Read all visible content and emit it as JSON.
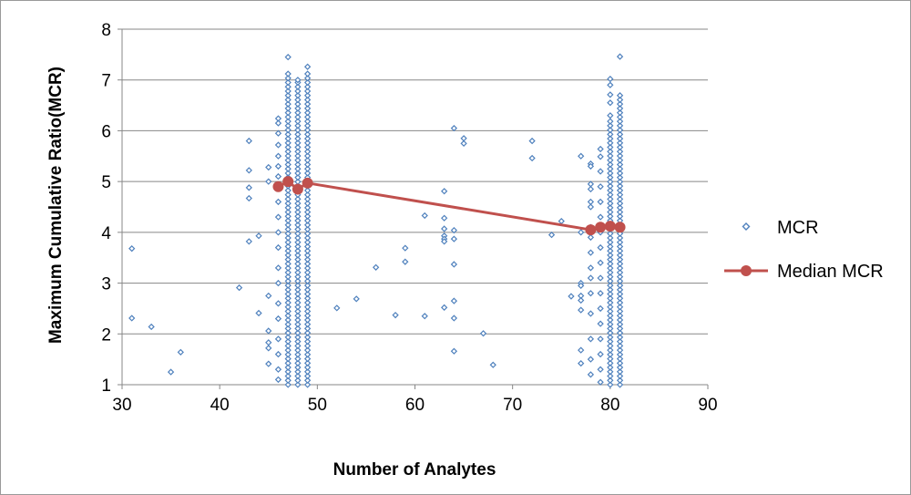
{
  "chart_data": {
    "type": "scatter",
    "xlabel": "Number of Analytes",
    "ylabel": "Maximum Cumulative Ratio(MCR)",
    "xlim": [
      30,
      90
    ],
    "ylim": [
      1,
      8
    ],
    "x_ticks": [
      30,
      40,
      50,
      60,
      70,
      80,
      90
    ],
    "y_ticks": [
      1,
      2,
      3,
      4,
      5,
      6,
      7,
      8
    ],
    "grid": "horizontal major gridlines",
    "legend_position": "right",
    "series": [
      {
        "name": "MCR",
        "type": "scatter",
        "marker": "diamond-open",
        "color": "#4f81bd",
        "points": [
          [
            31,
            3.68
          ],
          [
            31,
            2.31
          ],
          [
            33,
            2.14
          ],
          [
            35,
            1.25
          ],
          [
            36,
            1.64
          ],
          [
            42,
            2.91
          ],
          [
            43,
            5.8
          ],
          [
            43,
            5.22
          ],
          [
            43,
            4.88
          ],
          [
            43,
            4.67
          ],
          [
            43,
            3.82
          ],
          [
            44,
            3.93
          ],
          [
            44,
            2.41
          ],
          [
            45,
            5.28
          ],
          [
            45,
            5.0
          ],
          [
            45,
            2.75
          ],
          [
            45,
            2.06
          ],
          [
            45,
            1.83
          ],
          [
            45,
            1.72
          ],
          [
            45,
            1.41
          ],
          [
            46,
            6.24
          ],
          [
            46,
            6.15
          ],
          [
            46,
            5.95
          ],
          [
            46,
            5.72
          ],
          [
            46,
            5.5
          ],
          [
            46,
            5.3
          ],
          [
            46,
            5.1
          ],
          [
            46,
            4.9
          ],
          [
            46,
            4.6
          ],
          [
            46,
            4.3
          ],
          [
            46,
            4.0
          ],
          [
            46,
            3.7
          ],
          [
            46,
            3.3
          ],
          [
            46,
            3.0
          ],
          [
            46,
            2.6
          ],
          [
            46,
            2.3
          ],
          [
            46,
            1.9
          ],
          [
            46,
            1.6
          ],
          [
            46,
            1.3
          ],
          [
            46,
            1.1
          ],
          [
            52,
            2.51
          ],
          [
            54,
            2.69
          ],
          [
            56,
            3.31
          ],
          [
            58,
            2.37
          ],
          [
            59,
            3.69
          ],
          [
            59,
            3.42
          ],
          [
            61,
            4.33
          ],
          [
            61,
            2.35
          ],
          [
            63,
            4.81
          ],
          [
            63,
            4.28
          ],
          [
            63,
            4.07
          ],
          [
            63,
            3.93
          ],
          [
            63,
            3.87
          ],
          [
            63,
            3.82
          ],
          [
            63,
            2.52
          ],
          [
            64,
            6.05
          ],
          [
            64,
            4.04
          ],
          [
            64,
            3.87
          ],
          [
            64,
            3.37
          ],
          [
            64,
            2.65
          ],
          [
            64,
            2.31
          ],
          [
            64,
            1.66
          ],
          [
            65,
            5.85
          ],
          [
            65,
            5.75
          ],
          [
            67,
            2.01
          ],
          [
            68,
            1.39
          ],
          [
            72,
            5.8
          ],
          [
            72,
            5.46
          ],
          [
            74,
            3.95
          ],
          [
            75,
            4.22
          ],
          [
            76,
            2.74
          ],
          [
            77,
            5.5
          ],
          [
            77,
            4.0
          ],
          [
            77,
            3.0
          ],
          [
            77,
            2.95
          ],
          [
            77,
            2.75
          ],
          [
            77,
            2.66
          ],
          [
            77,
            2.47
          ],
          [
            77,
            1.68
          ],
          [
            77,
            1.42
          ],
          [
            78,
            5.35
          ],
          [
            78,
            5.3
          ],
          [
            78,
            4.95
          ],
          [
            78,
            4.85
          ],
          [
            78,
            4.6
          ],
          [
            78,
            4.5
          ],
          [
            78,
            4.1
          ],
          [
            78,
            3.9
          ],
          [
            78,
            3.6
          ],
          [
            78,
            3.3
          ],
          [
            78,
            3.1
          ],
          [
            78,
            2.8
          ],
          [
            78,
            2.4
          ],
          [
            78,
            1.9
          ],
          [
            78,
            1.5
          ],
          [
            78,
            1.2
          ],
          [
            79,
            5.64
          ],
          [
            79,
            5.49
          ],
          [
            79,
            5.2
          ],
          [
            79,
            4.9
          ],
          [
            79,
            4.6
          ],
          [
            79,
            4.3
          ],
          [
            79,
            4.0
          ],
          [
            79,
            3.7
          ],
          [
            79,
            3.4
          ],
          [
            79,
            3.1
          ],
          [
            79,
            2.8
          ],
          [
            79,
            2.5
          ],
          [
            79,
            2.2
          ],
          [
            79,
            1.9
          ],
          [
            79,
            1.6
          ],
          [
            79,
            1.3
          ],
          [
            79,
            1.05
          ],
          [
            80,
            7.02
          ],
          [
            80,
            6.9
          ],
          [
            80,
            6.71
          ],
          [
            80,
            6.55
          ],
          [
            80,
            6.3
          ]
        ],
        "dense_columns": [
          {
            "x": 47,
            "ymin": 1.0,
            "ymax": 7.1,
            "outliers": [
              7.45,
              7.12
            ]
          },
          {
            "x": 48,
            "ymin": 1.0,
            "ymax": 6.95,
            "outliers": [
              7.0
            ]
          },
          {
            "x": 49,
            "ymin": 1.0,
            "ymax": 7.15,
            "outliers": [
              7.26
            ]
          },
          {
            "x": 80,
            "ymin": 1.0,
            "ymax": 6.2,
            "outliers": []
          },
          {
            "x": 81,
            "ymin": 1.0,
            "ymax": 6.75,
            "outliers": [
              7.46
            ]
          }
        ]
      },
      {
        "name": "Median MCR",
        "type": "line",
        "marker": "circle",
        "color": "#c0504d",
        "points": [
          [
            46,
            4.9
          ],
          [
            47,
            5.0
          ],
          [
            48,
            4.85
          ],
          [
            49,
            4.97
          ],
          [
            78,
            4.05
          ],
          [
            79,
            4.1
          ],
          [
            80,
            4.12
          ],
          [
            81,
            4.1
          ]
        ]
      }
    ]
  }
}
